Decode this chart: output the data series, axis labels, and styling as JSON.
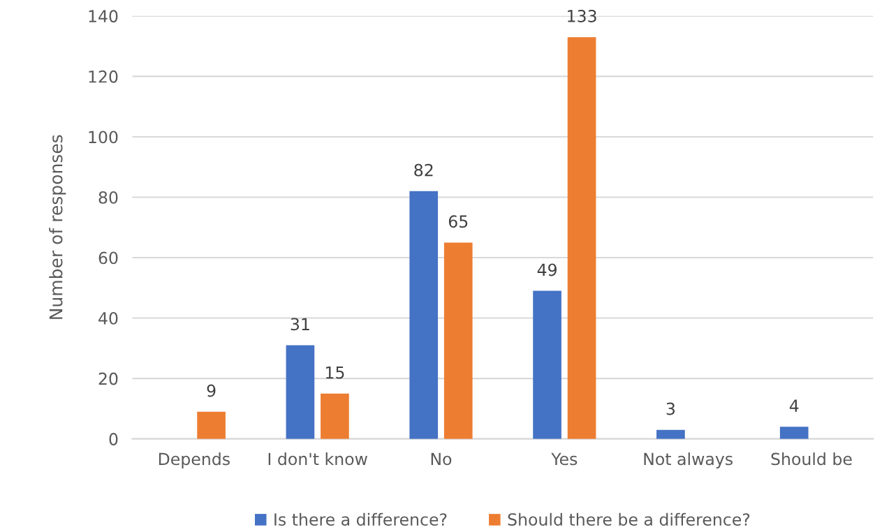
{
  "chart_data": {
    "type": "bar",
    "ylabel": "Number of responses",
    "categories": [
      "Depends",
      "I don't know",
      "No",
      "Yes",
      "Not always",
      "Should be"
    ],
    "series": [
      {
        "name": "Is there a difference?",
        "color": "#4472c4",
        "values": [
          null,
          31,
          82,
          49,
          3,
          4
        ]
      },
      {
        "name": "Should there be a difference?",
        "color": "#ed7d31",
        "values": [
          9,
          15,
          65,
          133,
          null,
          null
        ]
      }
    ],
    "ylim": [
      0,
      140
    ],
    "yticks": [
      0,
      20,
      40,
      60,
      80,
      100,
      120,
      140
    ],
    "grid": "y",
    "legend": "bottom",
    "data_labels": true
  }
}
